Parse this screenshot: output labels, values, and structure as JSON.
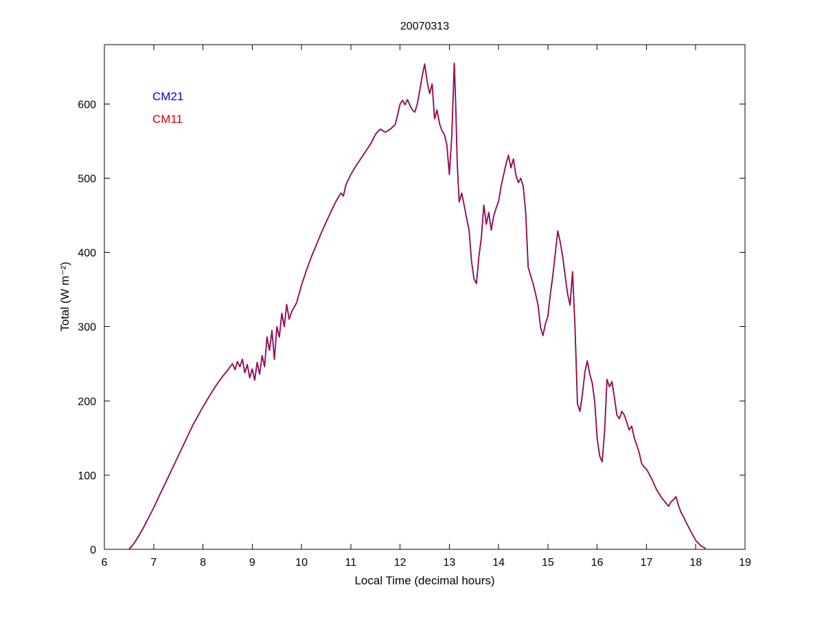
{
  "figure": {
    "background": "#ffffff"
  },
  "chart_data": {
    "type": "line",
    "title": "20070313",
    "xlabel": "Local Time (decimal hours)",
    "ylabel": "Total (W m⁻²)",
    "xlim": [
      6,
      19
    ],
    "ylim": [
      0,
      680
    ],
    "xticks": [
      6,
      7,
      8,
      9,
      10,
      11,
      12,
      13,
      14,
      15,
      16,
      17,
      18,
      19
    ],
    "yticks": [
      0,
      100,
      200,
      300,
      400,
      500,
      600
    ],
    "grid": false,
    "legend": {
      "position": "upper-left-inside",
      "style": "text-only"
    },
    "x": [
      6.5,
      6.6,
      6.7,
      6.8,
      6.9,
      7.0,
      7.1,
      7.2,
      7.3,
      7.4,
      7.5,
      7.6,
      7.7,
      7.8,
      7.9,
      8.0,
      8.1,
      8.2,
      8.3,
      8.4,
      8.5,
      8.55,
      8.6,
      8.65,
      8.7,
      8.75,
      8.8,
      8.85,
      8.9,
      8.95,
      9.0,
      9.05,
      9.1,
      9.15,
      9.2,
      9.25,
      9.3,
      9.35,
      9.4,
      9.45,
      9.5,
      9.55,
      9.6,
      9.65,
      9.7,
      9.75,
      9.8,
      9.9,
      10.0,
      10.1,
      10.2,
      10.3,
      10.4,
      10.5,
      10.6,
      10.7,
      10.8,
      10.85,
      10.9,
      11.0,
      11.1,
      11.2,
      11.3,
      11.4,
      11.5,
      11.55,
      11.6,
      11.7,
      11.8,
      11.9,
      11.95,
      12.0,
      12.05,
      12.1,
      12.15,
      12.2,
      12.25,
      12.3,
      12.35,
      12.4,
      12.45,
      12.5,
      12.55,
      12.6,
      12.65,
      12.7,
      12.75,
      12.8,
      12.85,
      12.9,
      12.95,
      13.0,
      13.05,
      13.1,
      13.13,
      13.16,
      13.2,
      13.25,
      13.3,
      13.35,
      13.4,
      13.45,
      13.5,
      13.55,
      13.6,
      13.65,
      13.7,
      13.75,
      13.8,
      13.85,
      13.9,
      13.95,
      14.0,
      14.05,
      14.1,
      14.15,
      14.2,
      14.25,
      14.3,
      14.35,
      14.4,
      14.45,
      14.5,
      14.55,
      14.6,
      14.65,
      14.7,
      14.75,
      14.8,
      14.85,
      14.9,
      14.95,
      15.0,
      15.05,
      15.1,
      15.15,
      15.2,
      15.25,
      15.3,
      15.35,
      15.4,
      15.45,
      15.5,
      15.55,
      15.6,
      15.65,
      15.7,
      15.75,
      15.8,
      15.85,
      15.9,
      15.95,
      16.0,
      16.05,
      16.1,
      16.15,
      16.2,
      16.25,
      16.3,
      16.35,
      16.4,
      16.45,
      16.5,
      16.55,
      16.6,
      16.65,
      16.7,
      16.75,
      16.8,
      16.85,
      16.9,
      16.95,
      17.0,
      17.1,
      17.2,
      17.3,
      17.4,
      17.45,
      17.5,
      17.55,
      17.6,
      17.65,
      17.7,
      17.75,
      17.8,
      17.9,
      18.0,
      18.1,
      18.2
    ],
    "series": [
      {
        "name": "CM21",
        "color": "#0000dd",
        "values": [
          0,
          8,
          18,
          30,
          43,
          56,
          70,
          84,
          98,
          112,
          126,
          140,
          154,
          168,
          180,
          192,
          203,
          214,
          224,
          233,
          241,
          246,
          250,
          242,
          253,
          246,
          256,
          238,
          249,
          231,
          243,
          228,
          252,
          236,
          261,
          246,
          286,
          268,
          295,
          256,
          300,
          286,
          318,
          300,
          330,
          310,
          320,
          332,
          356,
          376,
          394,
          410,
          426,
          441,
          455,
          469,
          480,
          476,
          491,
          505,
          516,
          526,
          536,
          546,
          559,
          563,
          566,
          562,
          566,
          572,
          585,
          600,
          605,
          599,
          606,
          598,
          592,
          589,
          600,
          618,
          638,
          654,
          630,
          614,
          627,
          580,
          592,
          574,
          564,
          559,
          545,
          505,
          558,
          655,
          598,
          520,
          468,
          480,
          464,
          446,
          430,
          388,
          364,
          358,
          394,
          420,
          464,
          438,
          454,
          430,
          449,
          460,
          469,
          489,
          504,
          519,
          531,
          514,
          526,
          504,
          494,
          500,
          489,
          454,
          380,
          369,
          358,
          344,
          329,
          299,
          288,
          304,
          314,
          344,
          369,
          399,
          429,
          414,
          394,
          369,
          344,
          329,
          374,
          299,
          196,
          186,
          209,
          239,
          254,
          236,
          224,
          199,
          149,
          126,
          118,
          159,
          229,
          219,
          226,
          204,
          181,
          176,
          186,
          181,
          171,
          161,
          166,
          151,
          141,
          131,
          116,
          111,
          108,
          96,
          81,
          70,
          62,
          58,
          64,
          67,
          71,
          59,
          50,
          44,
          37,
          24,
          12,
          5,
          1
        ]
      },
      {
        "name": "CM11",
        "color": "#dd0000",
        "values": [
          0,
          8,
          18,
          30,
          43,
          56,
          70,
          84,
          98,
          112,
          126,
          140,
          154,
          168,
          180,
          192,
          203,
          214,
          224,
          233,
          241,
          246,
          250,
          242,
          253,
          246,
          256,
          238,
          249,
          231,
          243,
          228,
          252,
          236,
          261,
          246,
          286,
          268,
          295,
          256,
          300,
          286,
          318,
          300,
          330,
          310,
          320,
          332,
          356,
          376,
          394,
          410,
          426,
          441,
          455,
          469,
          480,
          476,
          491,
          505,
          516,
          526,
          536,
          546,
          559,
          563,
          566,
          562,
          566,
          572,
          585,
          600,
          605,
          599,
          606,
          598,
          592,
          589,
          600,
          618,
          638,
          654,
          630,
          614,
          627,
          580,
          592,
          574,
          564,
          559,
          545,
          505,
          558,
          655,
          598,
          520,
          468,
          480,
          464,
          446,
          430,
          388,
          364,
          358,
          394,
          420,
          464,
          438,
          454,
          430,
          449,
          460,
          469,
          489,
          504,
          519,
          531,
          514,
          526,
          504,
          494,
          500,
          489,
          454,
          380,
          369,
          358,
          344,
          329,
          299,
          288,
          304,
          314,
          344,
          369,
          399,
          429,
          414,
          394,
          369,
          344,
          329,
          374,
          299,
          196,
          186,
          209,
          239,
          254,
          236,
          224,
          199,
          149,
          126,
          118,
          159,
          229,
          219,
          226,
          204,
          181,
          176,
          186,
          181,
          171,
          161,
          166,
          151,
          141,
          131,
          116,
          111,
          108,
          96,
          81,
          70,
          62,
          58,
          64,
          67,
          71,
          59,
          50,
          44,
          37,
          24,
          12,
          5,
          1
        ]
      }
    ]
  }
}
